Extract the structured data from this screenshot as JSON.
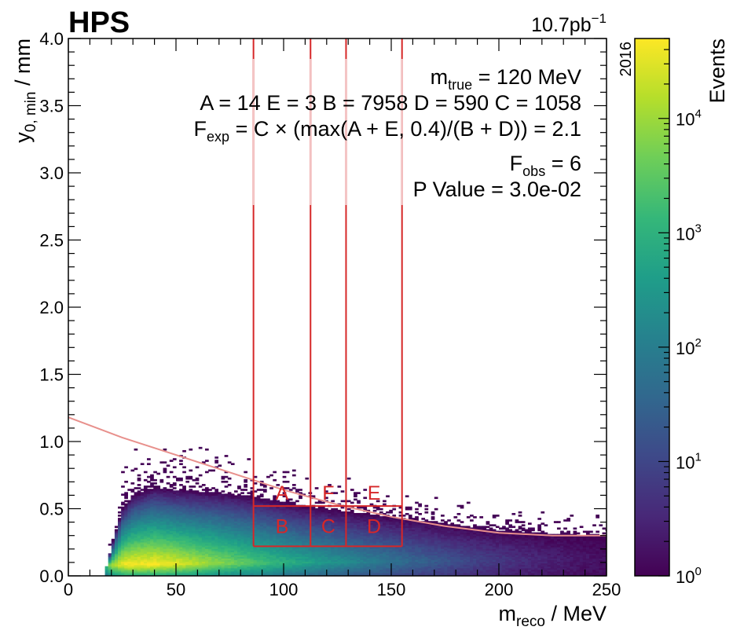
{
  "chart_data": {
    "type": "heatmap",
    "experiment": "HPS",
    "luminosity": "10.7pb",
    "luminosity_exp": "−1",
    "year": "2016",
    "xlabel": "m",
    "xlabel_sub": "reco",
    "xlabel_unit": " / MeV",
    "ylabel": "y",
    "ylabel_sub": "0, min",
    "ylabel_unit": " / mm",
    "xlim": [
      0,
      250
    ],
    "ylim": [
      0,
      4.0
    ],
    "x_ticks": [
      {
        "value": 0,
        "label": "0"
      },
      {
        "value": 50,
        "label": "50"
      },
      {
        "value": 100,
        "label": "100"
      },
      {
        "value": 150,
        "label": "150"
      },
      {
        "value": 200,
        "label": "200"
      },
      {
        "value": 250,
        "label": "250"
      }
    ],
    "y_ticks": [
      {
        "value": 0.0,
        "label": "0.0"
      },
      {
        "value": 0.5,
        "label": "0.5"
      },
      {
        "value": 1.0,
        "label": "1.0"
      },
      {
        "value": 1.5,
        "label": "1.5"
      },
      {
        "value": 2.0,
        "label": "2.0"
      },
      {
        "value": 2.5,
        "label": "2.5"
      },
      {
        "value": 3.0,
        "label": "3.0"
      },
      {
        "value": 3.5,
        "label": "3.5"
      },
      {
        "value": 4.0,
        "label": "4.0"
      }
    ],
    "colorbar": {
      "label": "Events",
      "scale": "log",
      "range": [
        1,
        50000
      ],
      "ticks": [
        {
          "value": 1,
          "label": "10",
          "exp": "0"
        },
        {
          "value": 10,
          "label": "10",
          "exp": "1"
        },
        {
          "value": 100,
          "label": "10",
          "exp": "2"
        },
        {
          "value": 1000,
          "label": "10",
          "exp": "3"
        },
        {
          "value": 10000,
          "label": "10",
          "exp": "4"
        }
      ]
    },
    "annotations": {
      "m_true": {
        "sym": "m",
        "sub": "true",
        "text": " = 120 MeV"
      },
      "counts": "A = 14 E = 3 B = 7958 D = 590 C = 1058",
      "f_exp": {
        "sym": "F",
        "sub": "exp",
        "text": " = C × (max(A + E, 0.4)/(B + D)) = 2.1"
      },
      "f_obs": {
        "sym": "F",
        "sub": "obs",
        "text": " = 6"
      },
      "p_value": "P Value = 3.0e-02"
    },
    "vertical_lines_x": [
      86,
      112.5,
      129,
      155
    ],
    "regions": [
      {
        "name": "A",
        "label": "A",
        "x": [
          86,
          112.5
        ],
        "y": [
          0.52,
          0.52
        ]
      },
      {
        "name": "F",
        "label": "F",
        "x": [
          112.5,
          129
        ],
        "y": [
          0.52,
          0.52
        ]
      },
      {
        "name": "E",
        "label": "E",
        "x": [
          129,
          155
        ],
        "y": [
          0.52,
          0.52
        ]
      },
      {
        "name": "B",
        "label": "B",
        "x": [
          86,
          112.5
        ],
        "y": [
          0.22,
          0.52
        ]
      },
      {
        "name": "C",
        "label": "C",
        "x": [
          112.5,
          129
        ],
        "y": [
          0.22,
          0.52
        ]
      },
      {
        "name": "D",
        "label": "D",
        "x": [
          129,
          155
        ],
        "y": [
          0.22,
          0.52
        ]
      }
    ],
    "region_box_y": [
      0.22,
      0.52
    ],
    "cut_curve": [
      {
        "x": 0,
        "y": 1.18
      },
      {
        "x": 25,
        "y": 1.03
      },
      {
        "x": 50,
        "y": 0.9
      },
      {
        "x": 75,
        "y": 0.77
      },
      {
        "x": 100,
        "y": 0.64
      },
      {
        "x": 125,
        "y": 0.53
      },
      {
        "x": 150,
        "y": 0.44
      },
      {
        "x": 175,
        "y": 0.37
      },
      {
        "x": 200,
        "y": 0.32
      },
      {
        "x": 225,
        "y": 0.3
      },
      {
        "x": 250,
        "y": 0.3
      }
    ],
    "density_profile": [
      {
        "x": 17,
        "y_top": 0.02,
        "peak": 3.0
      },
      {
        "x": 20,
        "y_top": 0.22,
        "peak": 4.0
      },
      {
        "x": 25,
        "y_top": 0.5,
        "peak": 4.6
      },
      {
        "x": 30,
        "y_top": 0.6,
        "peak": 4.7
      },
      {
        "x": 40,
        "y_top": 0.66,
        "peak": 4.7
      },
      {
        "x": 50,
        "y_top": 0.64,
        "peak": 4.5
      },
      {
        "x": 60,
        "y_top": 0.63,
        "peak": 4.2
      },
      {
        "x": 70,
        "y_top": 0.62,
        "peak": 3.9
      },
      {
        "x": 80,
        "y_top": 0.6,
        "peak": 3.6
      },
      {
        "x": 90,
        "y_top": 0.58,
        "peak": 3.3
      },
      {
        "x": 100,
        "y_top": 0.55,
        "peak": 3.0
      },
      {
        "x": 110,
        "y_top": 0.52,
        "peak": 2.75
      },
      {
        "x": 120,
        "y_top": 0.5,
        "peak": 2.5
      },
      {
        "x": 130,
        "y_top": 0.48,
        "peak": 2.25
      },
      {
        "x": 140,
        "y_top": 0.46,
        "peak": 2.0
      },
      {
        "x": 150,
        "y_top": 0.44,
        "peak": 1.8
      },
      {
        "x": 160,
        "y_top": 0.42,
        "peak": 1.55
      },
      {
        "x": 170,
        "y_top": 0.4,
        "peak": 1.35
      },
      {
        "x": 180,
        "y_top": 0.38,
        "peak": 1.15
      },
      {
        "x": 190,
        "y_top": 0.36,
        "peak": 0.95
      },
      {
        "x": 200,
        "y_top": 0.34,
        "peak": 0.8
      },
      {
        "x": 210,
        "y_top": 0.33,
        "peak": 0.65
      },
      {
        "x": 220,
        "y_top": 0.32,
        "peak": 0.5
      },
      {
        "x": 230,
        "y_top": 0.31,
        "peak": 0.38
      },
      {
        "x": 240,
        "y_top": 0.3,
        "peak": 0.28
      },
      {
        "x": 250,
        "y_top": 0.3,
        "peak": 0.2
      }
    ],
    "colors": {
      "region_lines": "#d62728",
      "cut_curve": "#e8908c",
      "colormap": [
        "#440154",
        "#482878",
        "#3e4989",
        "#31688e",
        "#26828e",
        "#1f9e89",
        "#35b779",
        "#6ece58",
        "#b5de2b",
        "#fde725"
      ]
    }
  }
}
